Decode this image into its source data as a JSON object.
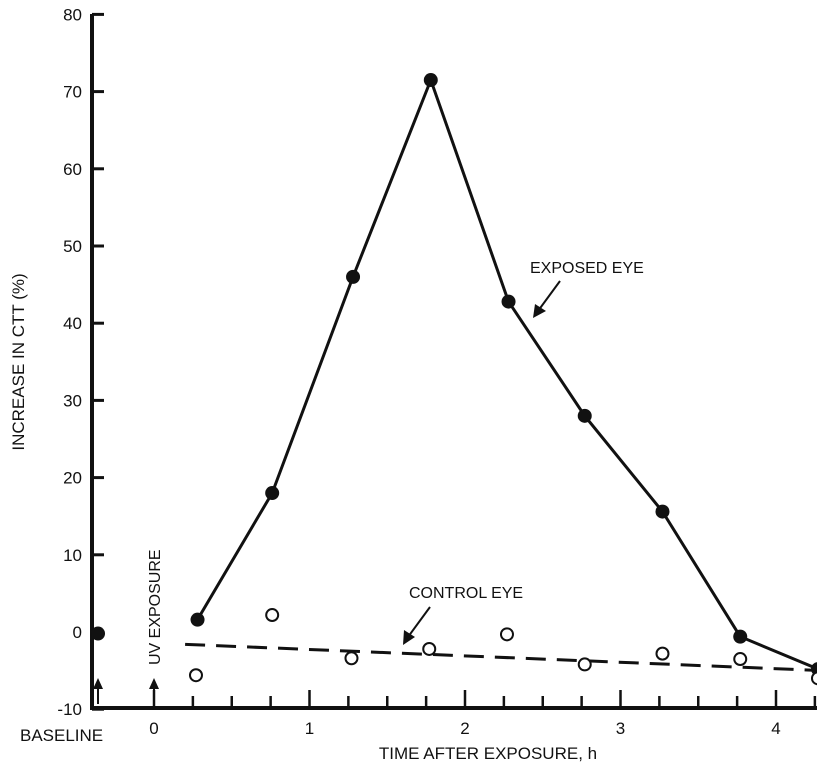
{
  "chart_data": {
    "type": "line",
    "xlabel": "TIME AFTER EXPOSURE, h",
    "ylabel": "INCREASE IN CTT (%)",
    "xlim": [
      -1,
      4.3
    ],
    "ylim": [
      -10,
      80
    ],
    "y_ticks": [
      -10,
      0,
      10,
      20,
      30,
      40,
      50,
      60,
      70,
      80
    ],
    "x_ticks": [
      0,
      1,
      2,
      3,
      4
    ],
    "grid": false,
    "series": [
      {
        "name": "EXPOSED EYE",
        "marker": "filled-circle",
        "line": "solid",
        "x": [
          0.28,
          0.76,
          1.28,
          1.78,
          2.28,
          2.77,
          3.27,
          3.77,
          4.27
        ],
        "y": [
          1.6,
          18,
          46,
          71.5,
          42.8,
          28,
          15.6,
          -0.6,
          -4.8
        ]
      },
      {
        "name": "CONTROL EYE",
        "marker": "open-circle",
        "line": "none",
        "x": [
          0.27,
          0.76,
          1.27,
          1.77,
          2.27,
          2.77,
          3.27,
          3.77,
          4.27
        ],
        "y": [
          -5.6,
          2.2,
          -3.4,
          -2.2,
          -0.3,
          -4.2,
          -2.8,
          -3.5,
          -6
        ]
      },
      {
        "name": "control-trend",
        "marker": "none",
        "line": "dashed",
        "x": [
          0.2,
          4.3
        ],
        "y": [
          -1.6,
          -5
        ]
      },
      {
        "name": "baseline",
        "marker": "filled-circle",
        "line": "none",
        "x": [
          -0.36
        ],
        "y": [
          -0.2
        ]
      }
    ],
    "annotations": {
      "exposed_label": "EXPOSED EYE",
      "control_label": "CONTROL EYE",
      "uv_label": "UV EXPOSURE",
      "baseline_label": "BASELINE"
    }
  }
}
